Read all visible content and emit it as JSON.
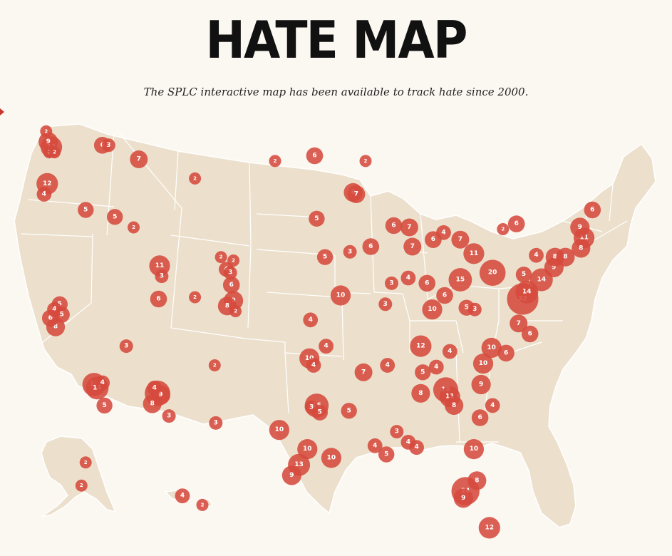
{
  "header": {
    "title": "HATE MAP",
    "subtitle": "The SPLC interactive map has been available to track hate since 2000."
  },
  "colors": {
    "marker": "#d54a3d",
    "land": "#ece0cd",
    "background": "#fbf7f1"
  },
  "markers": [
    {
      "lon": -122.3,
      "lat": 47.6,
      "count": 12
    },
    {
      "lon": -122.6,
      "lat": 47.9,
      "count": 9
    },
    {
      "lon": -122.8,
      "lat": 48.5,
      "count": 2
    },
    {
      "lon": -122.5,
      "lat": 47.3,
      "count": 2
    },
    {
      "lon": -122.0,
      "lat": 47.3,
      "count": 2
    },
    {
      "lon": -117.4,
      "lat": 47.7,
      "count": 6
    },
    {
      "lon": -116.8,
      "lat": 47.7,
      "count": 3
    },
    {
      "lon": -122.7,
      "lat": 45.5,
      "count": 12
    },
    {
      "lon": -123.0,
      "lat": 44.9,
      "count": 4
    },
    {
      "lon": -119.0,
      "lat": 44.0,
      "count": 5
    },
    {
      "lon": -113.9,
      "lat": 46.9,
      "count": 7
    },
    {
      "lon": -116.2,
      "lat": 43.6,
      "count": 5
    },
    {
      "lon": -114.4,
      "lat": 43.0,
      "count": 2
    },
    {
      "lon": -111.9,
      "lat": 40.8,
      "count": 11
    },
    {
      "lon": -111.7,
      "lat": 40.2,
      "count": 3
    },
    {
      "lon": -112.0,
      "lat": 38.9,
      "count": 6
    },
    {
      "lon": -105.0,
      "lat": 39.7,
      "count": 6
    },
    {
      "lon": -104.8,
      "lat": 38.8,
      "count": 9
    },
    {
      "lon": -105.4,
      "lat": 38.5,
      "count": 8
    },
    {
      "lon": -105.5,
      "lat": 40.6,
      "count": 4
    },
    {
      "lon": -105.1,
      "lat": 40.4,
      "count": 3
    },
    {
      "lon": -106.0,
      "lat": 41.3,
      "count": 2
    },
    {
      "lon": -108.5,
      "lat": 39.0,
      "count": 2
    },
    {
      "lon": -104.6,
      "lat": 38.2,
      "count": 2
    },
    {
      "lon": -97.0,
      "lat": 47.1,
      "count": 6
    },
    {
      "lon": -96.8,
      "lat": 43.5,
      "count": 5
    },
    {
      "lon": -93.3,
      "lat": 45.0,
      "count": 8
    },
    {
      "lon": -93.0,
      "lat": 44.9,
      "count": 7
    },
    {
      "lon": -92.1,
      "lat": 46.8,
      "count": 2
    },
    {
      "lon": -94.5,
      "lat": 39.1,
      "count": 10
    },
    {
      "lon": -97.4,
      "lat": 37.7,
      "count": 4
    },
    {
      "lon": -95.9,
      "lat": 36.2,
      "count": 4
    },
    {
      "lon": -97.5,
      "lat": 35.5,
      "count": 10
    },
    {
      "lon": -97.1,
      "lat": 35.1,
      "count": 4
    },
    {
      "lon": -96.8,
      "lat": 32.8,
      "count": 16
    },
    {
      "lon": -97.3,
      "lat": 32.7,
      "count": 3
    },
    {
      "lon": -96.5,
      "lat": 32.4,
      "count": 5
    },
    {
      "lon": -95.4,
      "lat": 29.8,
      "count": 10
    },
    {
      "lon": -98.5,
      "lat": 29.4,
      "count": 13
    },
    {
      "lon": -97.7,
      "lat": 30.3,
      "count": 10
    },
    {
      "lon": -99.2,
      "lat": 28.8,
      "count": 9
    },
    {
      "lon": -100.4,
      "lat": 31.4,
      "count": 10
    },
    {
      "lon": -92.3,
      "lat": 34.7,
      "count": 7
    },
    {
      "lon": -90.2,
      "lat": 38.6,
      "count": 3
    },
    {
      "lon": -87.6,
      "lat": 41.9,
      "count": 7
    },
    {
      "lon": -87.9,
      "lat": 43.0,
      "count": 7
    },
    {
      "lon": -89.4,
      "lat": 43.1,
      "count": 6
    },
    {
      "lon": -86.2,
      "lat": 39.8,
      "count": 6
    },
    {
      "lon": -85.7,
      "lat": 38.3,
      "count": 10
    },
    {
      "lon": -84.5,
      "lat": 39.1,
      "count": 6
    },
    {
      "lon": -83.0,
      "lat": 40.0,
      "count": 15
    },
    {
      "lon": -81.7,
      "lat": 41.5,
      "count": 11
    },
    {
      "lon": -83.0,
      "lat": 42.3,
      "count": 7
    },
    {
      "lon": -86.8,
      "lat": 36.2,
      "count": 12
    },
    {
      "lon": -84.4,
      "lat": 33.7,
      "count": 18
    },
    {
      "lon": -84.0,
      "lat": 33.3,
      "count": 11
    },
    {
      "lon": -80.8,
      "lat": 35.2,
      "count": 10
    },
    {
      "lon": -81.0,
      "lat": 34.0,
      "count": 9
    },
    {
      "lon": -80.2,
      "lat": 25.8,
      "count": 12
    },
    {
      "lon": -81.4,
      "lat": 28.5,
      "count": 8
    },
    {
      "lon": -82.5,
      "lat": 27.9,
      "count": 24
    },
    {
      "lon": -82.7,
      "lat": 27.5,
      "count": 9
    },
    {
      "lon": -81.7,
      "lat": 30.3,
      "count": 10
    },
    {
      "lon": -86.8,
      "lat": 33.5,
      "count": 8
    },
    {
      "lon": -79.9,
      "lat": 40.4,
      "count": 20
    },
    {
      "lon": -77.0,
      "lat": 38.9,
      "count": 32
    },
    {
      "lon": -76.6,
      "lat": 39.3,
      "count": 14
    },
    {
      "lon": -75.2,
      "lat": 40.0,
      "count": 14
    },
    {
      "lon": -74.0,
      "lat": 40.7,
      "count": 9
    },
    {
      "lon": -73.9,
      "lat": 41.3,
      "count": 8
    },
    {
      "lon": -71.1,
      "lat": 42.4,
      "count": 11
    },
    {
      "lon": -71.4,
      "lat": 41.8,
      "count": 8
    },
    {
      "lon": -72.9,
      "lat": 41.3,
      "count": 8
    },
    {
      "lon": -71.5,
      "lat": 43.0,
      "count": 9
    },
    {
      "lon": -70.3,
      "lat": 44.0,
      "count": 6
    },
    {
      "lon": -77.4,
      "lat": 37.5,
      "count": 7
    },
    {
      "lon": -76.3,
      "lat": 36.9,
      "count": 6
    },
    {
      "lon": -78.6,
      "lat": 35.8,
      "count": 6
    },
    {
      "lon": -80.0,
      "lat": 36.1,
      "count": 10
    },
    {
      "lon": -77.6,
      "lat": 43.2,
      "count": 6
    },
    {
      "lon": -78.9,
      "lat": 42.9,
      "count": 2
    },
    {
      "lon": -118.2,
      "lat": 34.0,
      "count": 15
    },
    {
      "lon": -117.9,
      "lat": 33.8,
      "count": 14
    },
    {
      "lon": -117.4,
      "lat": 34.1,
      "count": 4
    },
    {
      "lon": -117.2,
      "lat": 32.8,
      "count": 5
    },
    {
      "lon": -121.5,
      "lat": 38.6,
      "count": 5
    },
    {
      "lon": -121.9,
      "lat": 37.3,
      "count": 8
    },
    {
      "lon": -122.4,
      "lat": 37.8,
      "count": 6
    },
    {
      "lon": -122.0,
      "lat": 38.3,
      "count": 4
    },
    {
      "lon": -121.3,
      "lat": 38.0,
      "count": 5
    },
    {
      "lon": -112.1,
      "lat": 33.5,
      "count": 19
    },
    {
      "lon": -111.8,
      "lat": 33.4,
      "count": 9
    },
    {
      "lon": -112.4,
      "lat": 33.8,
      "count": 4
    },
    {
      "lon": -111.0,
      "lat": 32.2,
      "count": 3
    },
    {
      "lon": -112.6,
      "lat": 32.9,
      "count": 8
    },
    {
      "lon": -106.6,
      "lat": 35.1,
      "count": 2
    },
    {
      "lon": -106.5,
      "lat": 31.8,
      "count": 3
    },
    {
      "lon": -115.1,
      "lat": 36.2,
      "count": 3
    },
    {
      "lon": -84.0,
      "lat": 35.9,
      "count": 4
    },
    {
      "lon": -85.3,
      "lat": 35.0,
      "count": 4
    },
    {
      "lon": -90.0,
      "lat": 35.1,
      "count": 4
    },
    {
      "lon": -90.1,
      "lat": 30.0,
      "count": 5
    },
    {
      "lon": -91.2,
      "lat": 30.5,
      "count": 4
    },
    {
      "lon": -88.0,
      "lat": 30.7,
      "count": 4
    },
    {
      "lon": -83.6,
      "lat": 32.8,
      "count": 8
    },
    {
      "lon": -81.1,
      "lat": 32.1,
      "count": 6
    },
    {
      "lon": -79.9,
      "lat": 32.8,
      "count": 4
    },
    {
      "lon": -87.2,
      "lat": 30.4,
      "count": 4
    },
    {
      "lon": -149.9,
      "lat": 61.2,
      "count": 2
    },
    {
      "lon": -147.7,
      "lat": 64.8,
      "count": 2
    },
    {
      "lon": -157.9,
      "lat": 21.3,
      "count": 4
    },
    {
      "lon": -155.1,
      "lat": 19.7,
      "count": 2
    },
    {
      "lon": -85.6,
      "lat": 42.3,
      "count": 6
    },
    {
      "lon": -84.6,
      "lat": 42.7,
      "count": 4
    },
    {
      "lon": -88.0,
      "lat": 40.1,
      "count": 4
    },
    {
      "lon": -89.6,
      "lat": 39.8,
      "count": 3
    },
    {
      "lon": -93.6,
      "lat": 41.6,
      "count": 3
    },
    {
      "lon": -91.6,
      "lat": 41.9,
      "count": 6
    },
    {
      "lon": -96.0,
      "lat": 41.3,
      "count": 5
    },
    {
      "lon": -100.8,
      "lat": 46.8,
      "count": 2
    },
    {
      "lon": -108.5,
      "lat": 45.8,
      "count": 2
    },
    {
      "lon": -104.8,
      "lat": 41.1,
      "count": 2
    },
    {
      "lon": -75.7,
      "lat": 41.4,
      "count": 4
    },
    {
      "lon": -76.9,
      "lat": 40.3,
      "count": 5
    },
    {
      "lon": -82.4,
      "lat": 38.4,
      "count": 5
    },
    {
      "lon": -81.6,
      "lat": 38.3,
      "count": 3
    },
    {
      "lon": -86.6,
      "lat": 34.7,
      "count": 5
    },
    {
      "lon": -89.1,
      "lat": 31.3,
      "count": 3
    },
    {
      "lon": -93.7,
      "lat": 32.5,
      "count": 5
    }
  ]
}
